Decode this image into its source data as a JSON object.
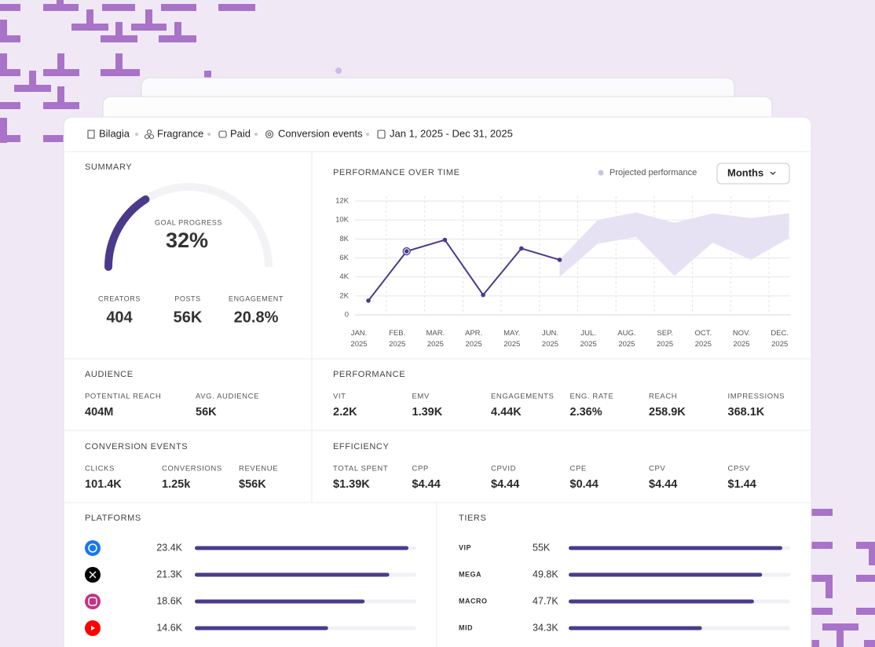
{
  "breadcrumb": [
    "Bilagia",
    "Fragrance",
    "Paid",
    "Conversion events",
    "Jan 1, 2025 - Dec 31, 2025"
  ],
  "summary": {
    "title": "SUMMARY",
    "goal": {
      "label": "GOAL PROGRESS",
      "value": 32,
      "value_label": "32%"
    },
    "stats": [
      {
        "label": "CREATORS",
        "value": "404"
      },
      {
        "label": "POSTS",
        "value": "56K"
      },
      {
        "label": "ENGAGEMENT",
        "value": "20.8%"
      }
    ]
  },
  "period_selector": "Months",
  "chart_data": {
    "type": "line",
    "title": "PERFORMANCE OVER TIME",
    "categories": [
      [
        "JAN.",
        "2025"
      ],
      [
        "FEB.",
        "2025"
      ],
      [
        "MAR.",
        "2025"
      ],
      [
        "APR.",
        "2025"
      ],
      [
        "MAY.",
        "2025"
      ],
      [
        "JUN.",
        "2025"
      ],
      [
        "JUL.",
        "2025"
      ],
      [
        "AUG.",
        "2025"
      ],
      [
        "SEP.",
        "2025"
      ],
      [
        "OCT.",
        "2025"
      ],
      [
        "NOV.",
        "2025"
      ],
      [
        "DEC.",
        "2025"
      ]
    ],
    "series": [
      {
        "color": "#4b3a8c",
        "values": [
          1500,
          6700,
          7900,
          2100,
          7000,
          5800,
          null,
          null,
          null,
          null,
          null,
          null
        ]
      },
      {
        "name": "Projected performance",
        "color": "#e7e1f4",
        "legend_color": "#cbc2ea",
        "upper": [
          null,
          null,
          null,
          null,
          null,
          5800,
          10000,
          10800,
          9700,
          10700,
          10200,
          10700
        ],
        "lower": [
          null,
          null,
          null,
          null,
          null,
          4000,
          7500,
          8200,
          4100,
          7600,
          5800,
          8100
        ]
      }
    ],
    "ylim": [
      0,
      12000
    ],
    "yticks": [
      0,
      {
        "value": 2000,
        "label": "2K"
      },
      {
        "value": 4000,
        "label": "4K"
      },
      {
        "value": 6000,
        "label": "6K"
      },
      {
        "value": 8000,
        "label": "8K"
      },
      {
        "value": 10000,
        "label": "10K"
      },
      {
        "value": 12000,
        "label": "12K"
      }
    ],
    "grid": true
  },
  "audience": {
    "title": "AUDIENCE",
    "metrics": [
      {
        "label": "POTENTIAL REACH",
        "value": "404M"
      },
      {
        "label": "AVG. AUDIENCE",
        "value": "56K"
      }
    ]
  },
  "performance": {
    "title": "PERFORMANCE",
    "metrics": [
      {
        "label": "VIT",
        "value": "2.2K"
      },
      {
        "label": "EMV",
        "value": "1.39K"
      },
      {
        "label": "ENGAGEMENTS",
        "value": "4.44K"
      },
      {
        "label": "ENG. RATE",
        "value": "2.36%"
      },
      {
        "label": "REACH",
        "value": "258.9K"
      },
      {
        "label": "IMPRESSIONS",
        "value": "368.1K"
      }
    ]
  },
  "conversion_events": {
    "title": "CONVERSION EVENTS",
    "metrics": [
      {
        "label": "CLICKS",
        "value": "101.4K"
      },
      {
        "label": "CONVERSIONS",
        "value": "1.25k"
      },
      {
        "label": "REVENUE",
        "value": "$56K"
      }
    ]
  },
  "efficiency": {
    "title": "EFFICIENCY",
    "metrics": [
      {
        "label": "TOTAL SPENT",
        "value": "$1.39K"
      },
      {
        "label": "CPP",
        "value": "$4.44"
      },
      {
        "label": "CPVID",
        "value": "$4.44"
      },
      {
        "label": "CPE",
        "value": "$0.44"
      },
      {
        "label": "CPV",
        "value": "$4.44"
      },
      {
        "label": "CPSV",
        "value": "$1.44"
      }
    ]
  },
  "platforms": {
    "title": "PLATFORMS",
    "rows": [
      {
        "value": 23400,
        "label": "23.4K"
      },
      {
        "value": 21300,
        "label": "21.3K"
      },
      {
        "value": 18600,
        "label": "18.6K"
      },
      {
        "value": 14600,
        "label": "14.6K"
      }
    ]
  },
  "tiers": {
    "title": "TIERS",
    "rows": [
      {
        "name": "VIP",
        "value": 55000,
        "label": "55K"
      },
      {
        "name": "MEGA",
        "value": 49800,
        "label": "49.8K"
      },
      {
        "name": "MACRO",
        "value": 47700,
        "label": "47.7K"
      },
      {
        "name": "MID",
        "value": 34300,
        "label": "34.3K"
      }
    ]
  }
}
